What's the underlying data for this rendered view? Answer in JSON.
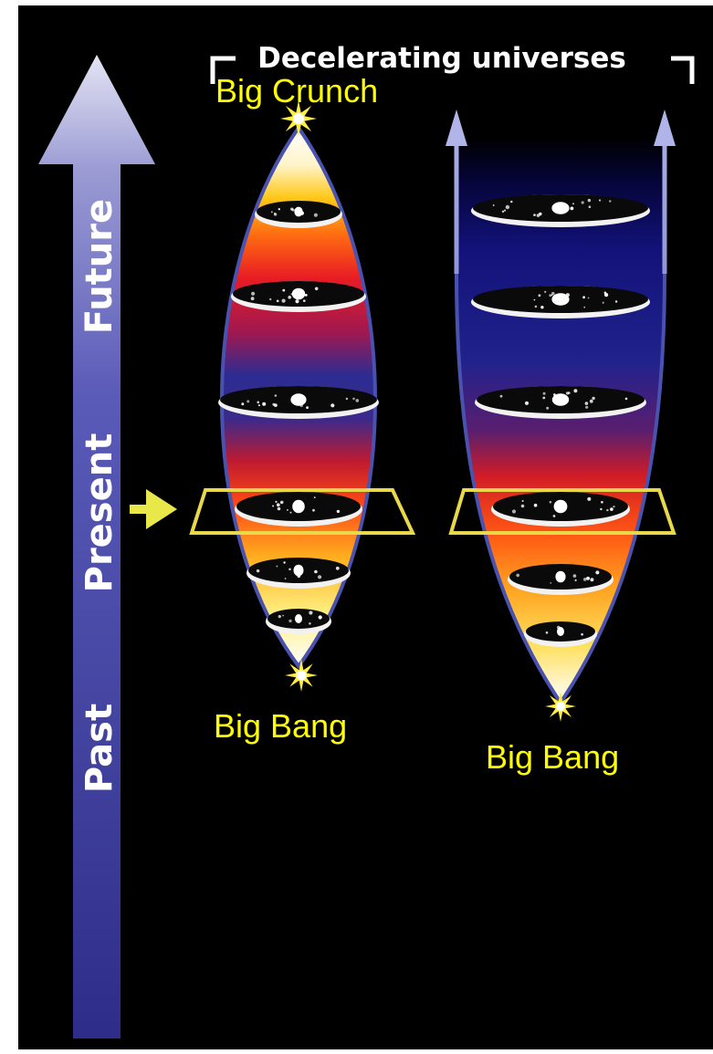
{
  "title": "Decelerating universes",
  "time_axis": {
    "future_label": "Future",
    "present_label": "Present",
    "past_label": "Past"
  },
  "universes": [
    {
      "top_label": "Big Crunch",
      "bottom_label": "Big Bang",
      "galaxy_disc_count": 6
    },
    {
      "top_label": "",
      "bottom_label": "Big Bang",
      "galaxy_disc_count": 6
    }
  ],
  "colors": {
    "background": "#000000",
    "frame": "#ffffff",
    "arrow": "#4a4aa8",
    "outline": "#4a52b0",
    "label_yellow": "#ffff00",
    "present_marker": "#e8e84a",
    "gradient_warm": [
      "#ffffff",
      "#ffd021",
      "#ff7a10",
      "#ee2222",
      "#c01838",
      "#2a2a90",
      "#0a0a60"
    ]
  }
}
